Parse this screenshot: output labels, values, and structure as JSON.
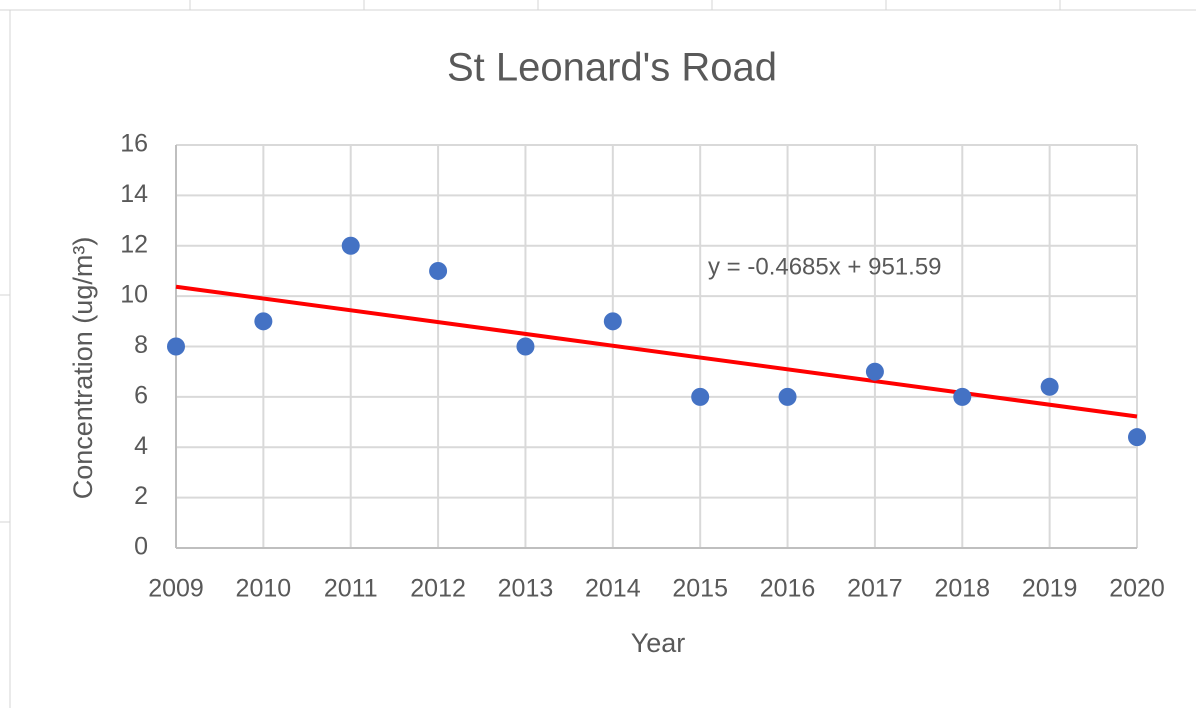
{
  "chart_data": {
    "type": "scatter",
    "title": "St Leonard's Road",
    "x_label": "Year",
    "y_label": "Concentration (ug/m³)",
    "series": [
      {
        "name": "Concentration",
        "color": "#4472c4",
        "x": [
          2009,
          2010,
          2011,
          2012,
          2013,
          2014,
          2015,
          2016,
          2017,
          2018,
          2019,
          2020
        ],
        "values": [
          8,
          9,
          12,
          11,
          8,
          9,
          6,
          6,
          7,
          6,
          6.4,
          4.4
        ]
      }
    ],
    "trendline": {
      "slope": -0.4685,
      "intercept": 951.59,
      "label": "y = -0.4685x + 951.59",
      "color": "#ff0000"
    },
    "xlim": [
      2009,
      2020
    ],
    "xticks": [
      2009,
      2010,
      2011,
      2012,
      2013,
      2014,
      2015,
      2016,
      2017,
      2018,
      2019,
      2020
    ],
    "ylim": [
      0,
      16
    ],
    "yticks": [
      0,
      2,
      4,
      6,
      8,
      10,
      12,
      14,
      16
    ],
    "grid": true
  }
}
